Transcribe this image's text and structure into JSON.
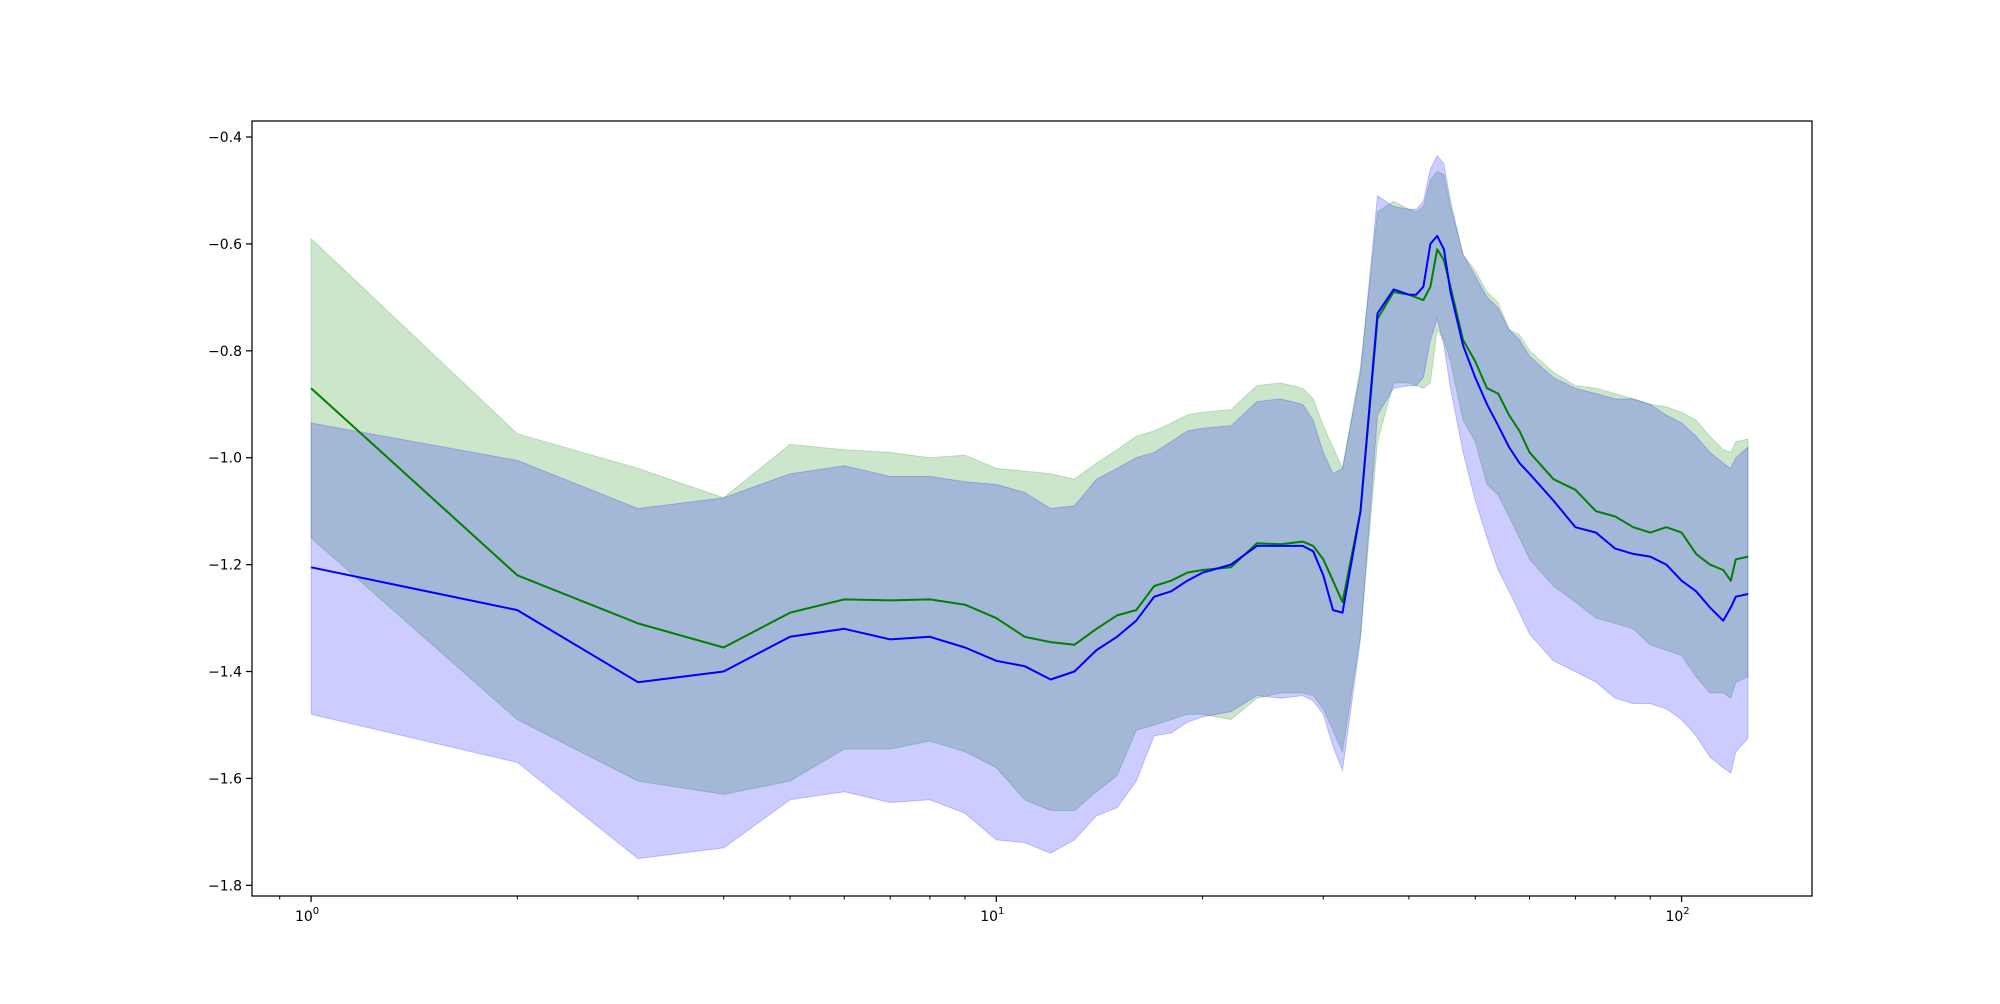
{
  "chart_data": {
    "type": "line",
    "title": "",
    "xlabel": "",
    "ylabel": "",
    "x_scale": "log",
    "xlim": [
      0.82,
      155
    ],
    "ylim": [
      -1.82,
      -0.37
    ],
    "x_major_ticks": [
      {
        "value": 1,
        "base": "10",
        "exp": "0"
      },
      {
        "value": 10,
        "base": "10",
        "exp": "1"
      },
      {
        "value": 100,
        "base": "10",
        "exp": "2"
      }
    ],
    "y_ticks": [
      -0.4,
      -0.6,
      -0.8,
      -1.0,
      -1.2,
      -1.4,
      -1.6,
      -1.8
    ],
    "y_tick_labels": [
      "−0.4",
      "−0.6",
      "−0.8",
      "−1.0",
      "−1.2",
      "−1.4",
      "−1.6",
      "−1.8"
    ],
    "grid": false,
    "legend": "none",
    "series": [
      {
        "color": "#008000",
        "band_color": "#008000",
        "band_opacity": 0.2,
        "x": [
          1,
          2,
          3,
          4,
          5,
          6,
          7,
          8,
          9,
          10,
          11,
          12,
          13,
          14,
          15,
          16,
          17,
          18,
          19,
          20,
          22,
          24,
          26,
          28,
          29,
          30,
          32,
          34,
          36,
          38,
          40,
          41,
          42,
          43,
          44,
          45,
          46,
          48,
          50,
          52,
          54,
          56,
          58,
          60,
          65,
          70,
          75,
          80,
          85,
          90,
          95,
          100,
          105,
          110,
          115,
          118,
          120,
          125
        ],
        "mean": [
          -0.87,
          -1.22,
          -1.31,
          -1.355,
          -1.29,
          -1.265,
          -1.267,
          -1.265,
          -1.275,
          -1.3,
          -1.335,
          -1.345,
          -1.35,
          -1.32,
          -1.295,
          -1.285,
          -1.24,
          -1.23,
          -1.215,
          -1.21,
          -1.205,
          -1.16,
          -1.162,
          -1.157,
          -1.165,
          -1.19,
          -1.27,
          -1.1,
          -0.74,
          -0.69,
          -0.695,
          -0.7,
          -0.705,
          -0.68,
          -0.61,
          -0.63,
          -0.68,
          -0.78,
          -0.82,
          -0.87,
          -0.88,
          -0.92,
          -0.95,
          -0.99,
          -1.04,
          -1.06,
          -1.1,
          -1.11,
          -1.13,
          -1.14,
          -1.13,
          -1.14,
          -1.18,
          -1.2,
          -1.21,
          -1.23,
          -1.19,
          -1.185
        ],
        "upper": [
          -0.59,
          -0.955,
          -1.02,
          -1.075,
          -0.975,
          -0.985,
          -0.99,
          -1.0,
          -0.995,
          -1.02,
          -1.025,
          -1.03,
          -1.04,
          -1.01,
          -0.985,
          -0.96,
          -0.95,
          -0.935,
          -0.92,
          -0.915,
          -0.91,
          -0.865,
          -0.86,
          -0.87,
          -0.89,
          -0.94,
          -1.02,
          -0.83,
          -0.54,
          -0.52,
          -0.535,
          -0.54,
          -0.53,
          -0.48,
          -0.465,
          -0.47,
          -0.53,
          -0.62,
          -0.65,
          -0.69,
          -0.71,
          -0.76,
          -0.77,
          -0.8,
          -0.84,
          -0.865,
          -0.87,
          -0.88,
          -0.89,
          -0.9,
          -0.905,
          -0.915,
          -0.93,
          -0.96,
          -0.985,
          -0.99,
          -0.97,
          -0.965
        ],
        "lower": [
          -1.15,
          -1.49,
          -1.605,
          -1.63,
          -1.605,
          -1.545,
          -1.545,
          -1.53,
          -1.55,
          -1.58,
          -1.64,
          -1.66,
          -1.66,
          -1.625,
          -1.595,
          -1.51,
          -1.5,
          -1.49,
          -1.48,
          -1.48,
          -1.49,
          -1.45,
          -1.44,
          -1.44,
          -1.445,
          -1.47,
          -1.55,
          -1.33,
          -0.97,
          -0.86,
          -0.86,
          -0.865,
          -0.87,
          -0.86,
          -0.76,
          -0.78,
          -0.82,
          -0.93,
          -0.97,
          -1.05,
          -1.07,
          -1.11,
          -1.15,
          -1.19,
          -1.24,
          -1.27,
          -1.3,
          -1.31,
          -1.32,
          -1.35,
          -1.36,
          -1.37,
          -1.41,
          -1.44,
          -1.44,
          -1.45,
          -1.42,
          -1.41
        ]
      },
      {
        "color": "#0000ff",
        "band_color": "#0000ff",
        "band_opacity": 0.2,
        "x": [
          1,
          2,
          3,
          4,
          5,
          6,
          7,
          8,
          9,
          10,
          11,
          12,
          13,
          14,
          15,
          16,
          17,
          18,
          19,
          20,
          22,
          24,
          26,
          28,
          29,
          30,
          31,
          32,
          34,
          36,
          38,
          40,
          41,
          42,
          43,
          44,
          45,
          46,
          48,
          50,
          52,
          54,
          56,
          58,
          60,
          65,
          70,
          75,
          80,
          85,
          90,
          95,
          100,
          105,
          110,
          115,
          118,
          120,
          125
        ],
        "mean": [
          -1.205,
          -1.285,
          -1.42,
          -1.4,
          -1.335,
          -1.32,
          -1.34,
          -1.335,
          -1.355,
          -1.38,
          -1.39,
          -1.415,
          -1.4,
          -1.36,
          -1.335,
          -1.305,
          -1.26,
          -1.25,
          -1.23,
          -1.215,
          -1.2,
          -1.165,
          -1.165,
          -1.165,
          -1.175,
          -1.22,
          -1.285,
          -1.29,
          -1.1,
          -0.73,
          -0.685,
          -0.695,
          -0.695,
          -0.68,
          -0.6,
          -0.585,
          -0.61,
          -0.69,
          -0.79,
          -0.85,
          -0.9,
          -0.94,
          -0.98,
          -1.01,
          -1.03,
          -1.08,
          -1.13,
          -1.14,
          -1.17,
          -1.18,
          -1.185,
          -1.2,
          -1.23,
          -1.25,
          -1.28,
          -1.305,
          -1.28,
          -1.26,
          -1.255
        ],
        "upper": [
          -0.935,
          -1.005,
          -1.095,
          -1.075,
          -1.03,
          -1.015,
          -1.035,
          -1.035,
          -1.045,
          -1.05,
          -1.065,
          -1.095,
          -1.09,
          -1.04,
          -1.02,
          -1.0,
          -0.99,
          -0.97,
          -0.95,
          -0.945,
          -0.94,
          -0.895,
          -0.89,
          -0.9,
          -0.93,
          -0.99,
          -1.03,
          -1.02,
          -0.84,
          -0.51,
          -0.53,
          -0.535,
          -0.535,
          -0.52,
          -0.46,
          -0.435,
          -0.45,
          -0.52,
          -0.62,
          -0.66,
          -0.7,
          -0.72,
          -0.76,
          -0.78,
          -0.81,
          -0.85,
          -0.87,
          -0.88,
          -0.89,
          -0.89,
          -0.9,
          -0.92,
          -0.935,
          -0.96,
          -0.99,
          -1.01,
          -1.02,
          -1.0,
          -0.98
        ],
        "lower": [
          -1.48,
          -1.57,
          -1.75,
          -1.73,
          -1.64,
          -1.625,
          -1.645,
          -1.64,
          -1.665,
          -1.715,
          -1.72,
          -1.74,
          -1.715,
          -1.67,
          -1.655,
          -1.605,
          -1.52,
          -1.515,
          -1.495,
          -1.485,
          -1.475,
          -1.445,
          -1.45,
          -1.445,
          -1.455,
          -1.48,
          -1.54,
          -1.585,
          -1.34,
          -0.92,
          -0.87,
          -0.865,
          -0.865,
          -0.85,
          -0.78,
          -0.74,
          -0.79,
          -0.87,
          -0.99,
          -1.08,
          -1.15,
          -1.21,
          -1.25,
          -1.29,
          -1.33,
          -1.38,
          -1.4,
          -1.42,
          -1.45,
          -1.46,
          -1.46,
          -1.47,
          -1.49,
          -1.52,
          -1.56,
          -1.58,
          -1.59,
          -1.55,
          -1.525
        ]
      }
    ]
  }
}
